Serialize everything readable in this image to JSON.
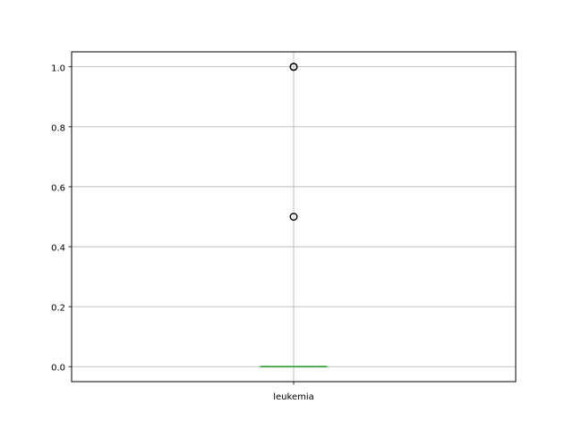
{
  "chart_data": {
    "type": "box",
    "title": "",
    "xlabel": "",
    "ylabel": "",
    "categories": [
      "leukemia"
    ],
    "ylim": [
      -0.05,
      1.05
    ],
    "yticks": [
      0.0,
      0.2,
      0.4,
      0.6,
      0.8,
      1.0
    ],
    "ytick_labels": [
      "0.0",
      "0.2",
      "0.4",
      "0.6",
      "0.8",
      "1.0"
    ],
    "grid": true,
    "boxes": [
      {
        "category": "leukemia",
        "whisker_low": 0.0,
        "q1": 0.0,
        "median": 0.0,
        "q3": 0.0,
        "whisker_high": 0.0,
        "outliers": [
          0.5,
          1.0,
          1.0
        ]
      }
    ],
    "colors": {
      "median": "#2ca02c",
      "box": "#1f77b4",
      "grid": "#b0b0b0",
      "outlier": "#000000"
    }
  }
}
